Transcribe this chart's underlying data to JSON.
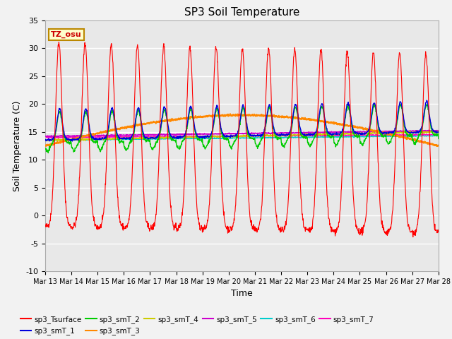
{
  "title": "SP3 Soil Temperature",
  "xlabel": "Time",
  "ylabel": "Soil Temperature (C)",
  "ylim": [
    -10,
    35
  ],
  "x_tick_labels": [
    "Mar 13",
    "Mar 14",
    "Mar 15",
    "Mar 16",
    "Mar 17",
    "Mar 18",
    "Mar 19",
    "Mar 20",
    "Mar 21",
    "Mar 22",
    "Mar 23",
    "Mar 24",
    "Mar 25",
    "Mar 26",
    "Mar 27",
    "Mar 28"
  ],
  "annotation_text": "TZ_osu",
  "annotation_color": "#cc0000",
  "annotation_bg": "#ffffcc",
  "annotation_border": "#bb8800",
  "series_colors": {
    "sp3_Tsurface": "#ff0000",
    "sp3_smT_1": "#0000dd",
    "sp3_smT_2": "#00cc00",
    "sp3_smT_3": "#ff8800",
    "sp3_smT_4": "#cccc00",
    "sp3_smT_5": "#cc00cc",
    "sp3_smT_6": "#00cccc",
    "sp3_smT_7": "#ff00bb"
  },
  "fig_bg": "#f2f2f2",
  "plot_bg": "#e8e8e8"
}
